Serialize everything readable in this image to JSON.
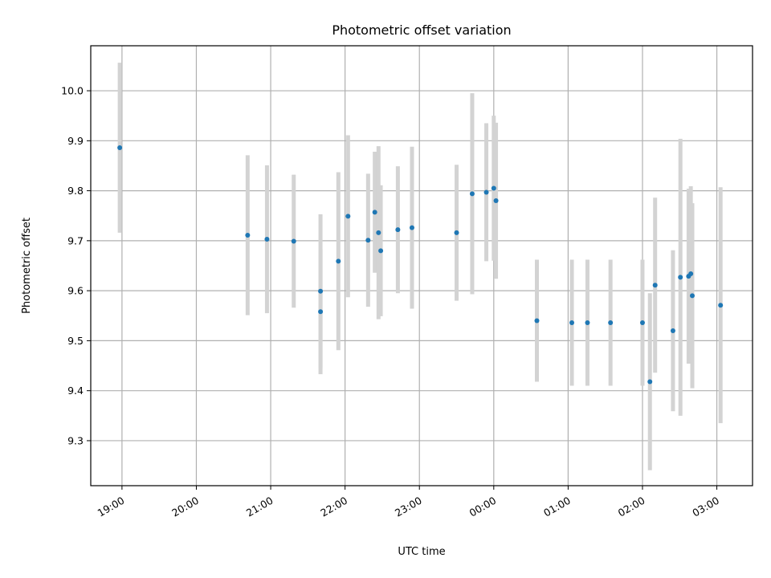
{
  "chart_data": {
    "type": "scatter",
    "title": "Photometric offset variation",
    "xlabel": "UTC time",
    "ylabel": "Photometric offset",
    "x_unit": "UTC time (hours; values past 24 are after midnight)",
    "xlim": [
      18.58,
      27.48
    ],
    "ylim": [
      9.21,
      10.09
    ],
    "xticks": [
      19,
      20,
      21,
      22,
      23,
      24,
      25,
      26,
      27
    ],
    "xtick_labels": [
      "19:00",
      "20:00",
      "21:00",
      "22:00",
      "23:00",
      "00:00",
      "01:00",
      "02:00",
      "03:00"
    ],
    "yticks": [
      9.3,
      9.4,
      9.5,
      9.6,
      9.7,
      9.8,
      9.9,
      10.0
    ],
    "ytick_labels": [
      "9.3",
      "9.4",
      "9.5",
      "9.6",
      "9.7",
      "9.8",
      "9.9",
      "10.0"
    ],
    "grid": true,
    "marker_color": "#1f77b4",
    "errorbar_color": "#d3d3d3",
    "points": [
      {
        "x": 18.97,
        "y": 9.886,
        "err": 0.17
      },
      {
        "x": 20.69,
        "y": 9.711,
        "err": 0.16
      },
      {
        "x": 20.95,
        "y": 9.703,
        "err": 0.148
      },
      {
        "x": 21.31,
        "y": 9.699,
        "err": 0.133
      },
      {
        "x": 21.67,
        "y": 9.599,
        "err": 0.154
      },
      {
        "x": 21.67,
        "y": 9.558,
        "err": 0.125
      },
      {
        "x": 21.91,
        "y": 9.659,
        "err": 0.178
      },
      {
        "x": 22.04,
        "y": 9.749,
        "err": 0.162
      },
      {
        "x": 22.31,
        "y": 9.701,
        "err": 0.133
      },
      {
        "x": 22.4,
        "y": 9.757,
        "err": 0.121
      },
      {
        "x": 22.45,
        "y": 9.716,
        "err": 0.173
      },
      {
        "x": 22.48,
        "y": 9.68,
        "err": 0.131
      },
      {
        "x": 22.71,
        "y": 9.722,
        "err": 0.127
      },
      {
        "x": 22.9,
        "y": 9.726,
        "err": 0.162
      },
      {
        "x": 23.5,
        "y": 9.716,
        "err": 0.136
      },
      {
        "x": 23.71,
        "y": 9.794,
        "err": 0.201
      },
      {
        "x": 23.9,
        "y": 9.797,
        "err": 0.138
      },
      {
        "x": 24.0,
        "y": 9.805,
        "err": 0.145
      },
      {
        "x": 24.03,
        "y": 9.78,
        "err": 0.156
      },
      {
        "x": 24.58,
        "y": 9.54,
        "err": 0.122
      },
      {
        "x": 25.05,
        "y": 9.536,
        "err": 0.126
      },
      {
        "x": 25.26,
        "y": 9.536,
        "err": 0.126
      },
      {
        "x": 25.57,
        "y": 9.536,
        "err": 0.126
      },
      {
        "x": 26.0,
        "y": 9.536,
        "err": 0.126
      },
      {
        "x": 26.1,
        "y": 9.418,
        "err": 0.177
      },
      {
        "x": 26.17,
        "y": 9.611,
        "err": 0.175
      },
      {
        "x": 26.41,
        "y": 9.52,
        "err": 0.161
      },
      {
        "x": 26.51,
        "y": 9.627,
        "err": 0.277
      },
      {
        "x": 26.62,
        "y": 9.629,
        "err": 0.175
      },
      {
        "x": 26.65,
        "y": 9.634,
        "err": 0.175
      },
      {
        "x": 26.67,
        "y": 9.59,
        "err": 0.185
      },
      {
        "x": 27.05,
        "y": 9.571,
        "err": 0.236
      }
    ]
  }
}
